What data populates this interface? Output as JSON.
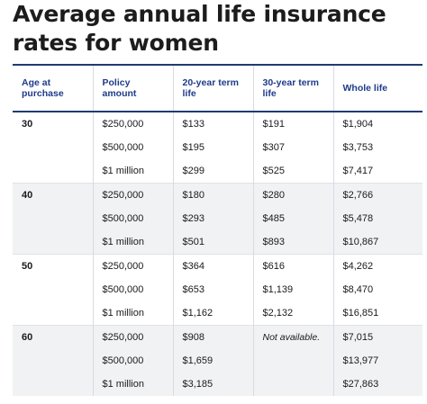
{
  "title": {
    "line1": "Average annual life insurance",
    "line2": "rates for women"
  },
  "table": {
    "headers": {
      "age": "Age at purchase",
      "policy": "Policy amount",
      "term20": "20-year term life",
      "term30": "30-year term life",
      "whole": "Whole life"
    },
    "groups": [
      {
        "age": "30",
        "rows": [
          {
            "policy": "$250,000",
            "term20": "$133",
            "term30": "$191",
            "whole": "$1,904"
          },
          {
            "policy": "$500,000",
            "term20": "$195",
            "term30": "$307",
            "whole": "$3,753"
          },
          {
            "policy": "$1 million",
            "term20": "$299",
            "term30": "$525",
            "whole": "$7,417"
          }
        ]
      },
      {
        "age": "40",
        "rows": [
          {
            "policy": "$250,000",
            "term20": "$180",
            "term30": "$280",
            "whole": "$2,766"
          },
          {
            "policy": "$500,000",
            "term20": "$293",
            "term30": "$485",
            "whole": "$5,478"
          },
          {
            "policy": "$1 million",
            "term20": "$501",
            "term30": "$893",
            "whole": "$10,867"
          }
        ]
      },
      {
        "age": "50",
        "rows": [
          {
            "policy": "$250,000",
            "term20": "$364",
            "term30": "$616",
            "whole": "$4,262"
          },
          {
            "policy": "$500,000",
            "term20": "$653",
            "term30": "$1,139",
            "whole": "$8,470"
          },
          {
            "policy": "$1 million",
            "term20": "$1,162",
            "term30": "$2,132",
            "whole": "$16,851"
          }
        ]
      },
      {
        "age": "60",
        "rows": [
          {
            "policy": "$250,000",
            "term20": "$908",
            "term30": "Not available.",
            "whole": "$7,015"
          },
          {
            "policy": "$500,000",
            "term20": "$1,659",
            "term30": "",
            "whole": "$13,977"
          },
          {
            "policy": "$1 million",
            "term20": "$3,185",
            "term30": "",
            "whole": "$27,863"
          }
        ]
      }
    ]
  }
}
